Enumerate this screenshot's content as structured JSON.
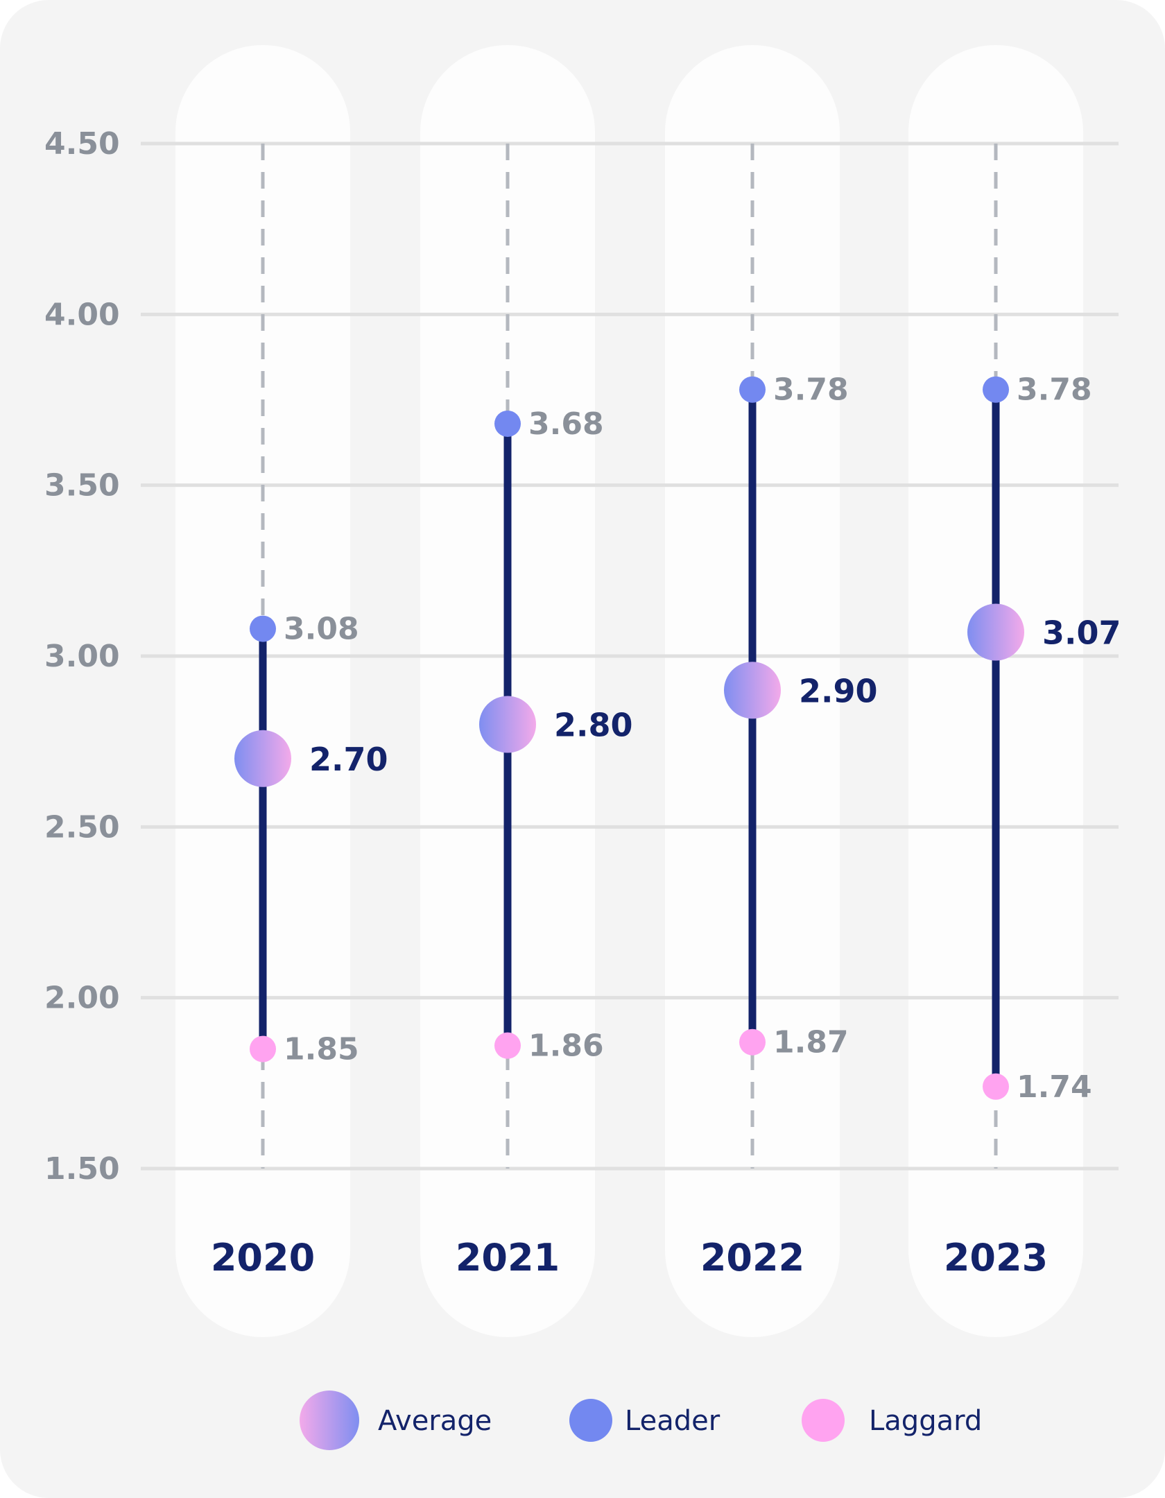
{
  "chart_data": {
    "type": "dot-range",
    "title": "",
    "xlabel": "",
    "ylabel": "",
    "ylim": [
      1.5,
      4.5
    ],
    "yticks": [
      "4.50",
      "4.00",
      "3.50",
      "3.00",
      "2.50",
      "2.00",
      "1.50"
    ],
    "ytick_values": [
      4.5,
      4.0,
      3.5,
      3.0,
      2.5,
      2.0,
      1.5
    ],
    "categories": [
      "2020",
      "2021",
      "2022",
      "2023"
    ],
    "series": [
      {
        "name": "Average",
        "values": [
          2.7,
          2.8,
          2.9,
          3.07
        ],
        "labels": [
          "2.70",
          "2.80",
          "2.90",
          "3.07"
        ]
      },
      {
        "name": "Leader",
        "values": [
          3.08,
          3.68,
          3.78,
          3.78
        ],
        "labels": [
          "3.08",
          "3.68",
          "3.78",
          "3.78"
        ]
      },
      {
        "name": "Laggard",
        "values": [
          1.85,
          1.86,
          1.87,
          1.74
        ],
        "labels": [
          "1.85",
          "1.86",
          "1.87",
          "1.74"
        ]
      }
    ],
    "legend": {
      "position": "bottom",
      "items": [
        "Average",
        "Leader",
        "Laggard"
      ]
    },
    "colors": {
      "leader": "#7388f0",
      "laggard": "#ffa3f0",
      "average_start": "#7f8ef0",
      "average_end": "#f3aaea",
      "range_line": "#13236a",
      "gridline": "#e0e0e0",
      "guide": "#b4b8bf"
    }
  }
}
